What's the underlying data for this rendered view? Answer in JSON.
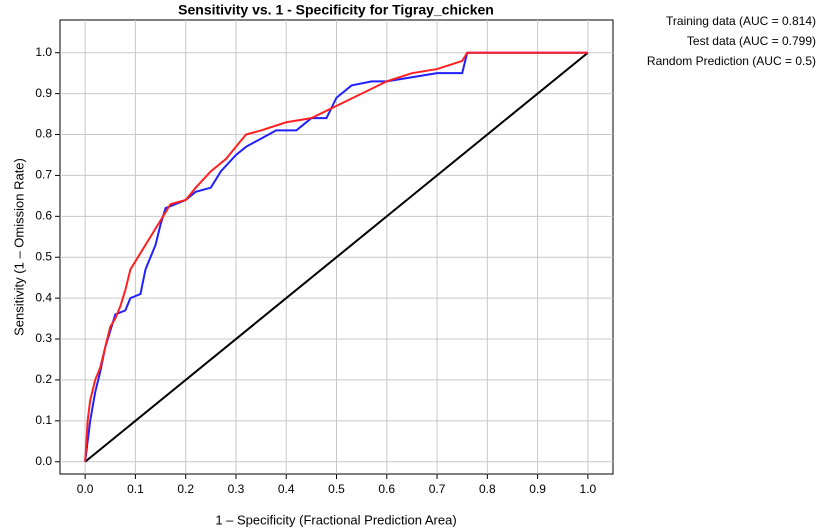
{
  "chart_data": {
    "type": "line",
    "title": "Sensitivity vs. 1 - Specificity for Tigray_chicken",
    "x_label": "1 – Specificity (Fractional Prediction Area)",
    "y_label": "Sensitivity (1 – Omission Rate)",
    "xlim": [
      -0.05,
      1.05
    ],
    "ylim": [
      -0.03,
      1.08
    ],
    "xticks": [
      {
        "value": 0,
        "label": "0.0"
      },
      0.1,
      0.2,
      0.3,
      0.4,
      0.5,
      0.6,
      0.7,
      0.8,
      0.9,
      {
        "value": 1,
        "label": "1.0"
      }
    ],
    "yticks": [
      {
        "value": 0,
        "label": "0.0"
      },
      0.1,
      0.2,
      0.3,
      0.4,
      0.5,
      0.6,
      0.7,
      0.8,
      0.9,
      {
        "value": 1,
        "label": "1.0"
      }
    ],
    "grid": true,
    "series": [
      {
        "name": "Training data (AUC = 0.814)",
        "color": "#ff2020",
        "x": [
          0,
          0.005,
          0.01,
          0.02,
          0.03,
          0.04,
          0.05,
          0.06,
          0.07,
          0.08,
          0.09,
          0.1,
          0.12,
          0.14,
          0.17,
          0.2,
          0.22,
          0.25,
          0.28,
          0.3,
          0.32,
          0.35,
          0.4,
          0.45,
          0.5,
          0.55,
          0.6,
          0.65,
          0.7,
          0.75,
          0.76,
          1
        ],
        "values": [
          0,
          0.1,
          0.15,
          0.2,
          0.23,
          0.28,
          0.33,
          0.35,
          0.38,
          0.42,
          0.47,
          0.49,
          0.53,
          0.57,
          0.63,
          0.64,
          0.67,
          0.71,
          0.74,
          0.77,
          0.8,
          0.81,
          0.83,
          0.84,
          0.87,
          0.9,
          0.93,
          0.95,
          0.96,
          0.98,
          1,
          1
        ]
      },
      {
        "name": "Test data (AUC = 0.799)",
        "color": "#2020ff",
        "x": [
          0,
          0.01,
          0.02,
          0.03,
          0.04,
          0.05,
          0.06,
          0.08,
          0.09,
          0.11,
          0.12,
          0.13,
          0.14,
          0.15,
          0.16,
          0.18,
          0.2,
          0.22,
          0.25,
          0.27,
          0.3,
          0.32,
          0.35,
          0.38,
          0.42,
          0.45,
          0.48,
          0.5,
          0.53,
          0.57,
          0.6,
          0.65,
          0.7,
          0.75,
          0.76,
          1
        ],
        "values": [
          0,
          0.1,
          0.17,
          0.22,
          0.28,
          0.32,
          0.36,
          0.37,
          0.4,
          0.41,
          0.47,
          0.5,
          0.53,
          0.58,
          0.62,
          0.63,
          0.64,
          0.66,
          0.67,
          0.71,
          0.75,
          0.77,
          0.79,
          0.81,
          0.81,
          0.84,
          0.84,
          0.89,
          0.92,
          0.93,
          0.93,
          0.94,
          0.95,
          0.95,
          1,
          1
        ]
      },
      {
        "name": "Random Prediction (AUC = 0.5)",
        "color": "#000000",
        "x": [
          0,
          1
        ],
        "values": [
          0,
          1
        ]
      }
    ]
  }
}
